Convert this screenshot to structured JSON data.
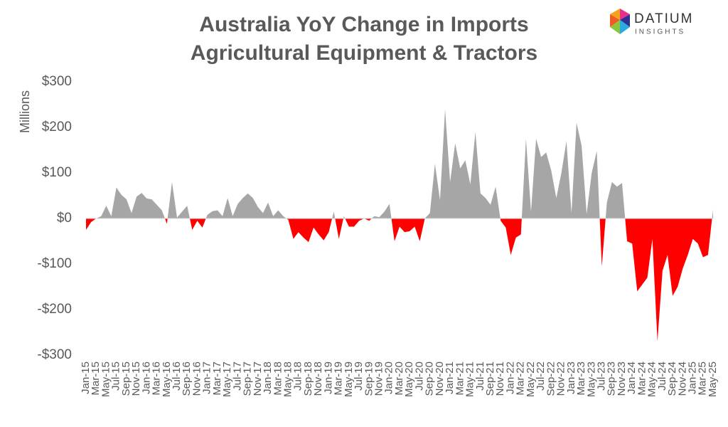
{
  "chart_data": {
    "type": "area",
    "title": "Australia YoY Change in Imports",
    "subtitle": "Agricultural Equipment & Tractors",
    "y_label": "Millions",
    "positive_color": "#a6a6a6",
    "negative_color": "#ff0000",
    "ylim": [
      -300,
      300
    ],
    "yticks": [
      {
        "value": -300,
        "label": "-$300"
      },
      {
        "value": -200,
        "label": "-$200"
      },
      {
        "value": -100,
        "label": "-$100"
      },
      {
        "value": 0,
        "label": "$0"
      },
      {
        "value": 100,
        "label": "$100"
      },
      {
        "value": 200,
        "label": "$200"
      },
      {
        "value": 300,
        "label": "$300"
      }
    ],
    "categories": [
      "Jan-15",
      null,
      "Mar-15",
      null,
      "May-15",
      null,
      "Jul-15",
      null,
      "Sep-15",
      null,
      "Nov-15",
      null,
      "Jan-16",
      null,
      "Mar-16",
      null,
      "May-16",
      null,
      "Jul-16",
      null,
      "Sep-16",
      null,
      "Nov-16",
      null,
      "Jan-17",
      null,
      "Mar-17",
      null,
      "May-17",
      null,
      "Jul-17",
      null,
      "Sep-17",
      null,
      "Nov-17",
      null,
      "Jan-18",
      null,
      "Mar-18",
      null,
      "May-18",
      null,
      "Jul-18",
      null,
      "Sep-18",
      null,
      "Nov-18",
      null,
      "Jan-19",
      null,
      "Mar-19",
      null,
      "May-19",
      null,
      "Jul-19",
      null,
      "Sep-19",
      null,
      "Nov-19",
      null,
      "Jan-20",
      null,
      "Mar-20",
      null,
      "May-20",
      null,
      "Jul-20",
      null,
      "Sep-20",
      null,
      "Nov-20",
      null,
      "Jan-21",
      null,
      "Mar-21",
      null,
      "May-21",
      null,
      "Jul-21",
      null,
      "Sep-21",
      null,
      "Nov-21",
      null,
      "Jan-22",
      null,
      "Mar-22",
      null,
      "May-22",
      null,
      "Jul-22",
      null,
      "Sep-22",
      null,
      "Nov-22",
      null,
      "Jan-23",
      null,
      "Mar-23",
      null,
      "May-23",
      null,
      "Jul-23",
      null,
      "Sep-23",
      null,
      "Nov-23",
      null,
      "Jan-24",
      null,
      "Mar-24",
      null,
      "May-24",
      null,
      "Jul-24",
      null,
      "Sep-24",
      null,
      "Nov-24",
      null,
      "Jan-25",
      null,
      "Mar-25",
      null,
      "May-25"
    ],
    "values": [
      -25,
      -8,
      0,
      5,
      28,
      5,
      68,
      52,
      42,
      12,
      48,
      56,
      44,
      42,
      30,
      18,
      -12,
      80,
      2,
      15,
      28,
      -25,
      -5,
      -20,
      8,
      16,
      18,
      5,
      45,
      5,
      32,
      45,
      55,
      45,
      25,
      12,
      35,
      5,
      18,
      5,
      -3,
      -45,
      -30,
      -42,
      -52,
      -20,
      -35,
      -48,
      -30,
      15,
      -45,
      5,
      -18,
      -18,
      -5,
      0,
      -5,
      5,
      3,
      15,
      32,
      -50,
      -18,
      -30,
      -28,
      -18,
      -50,
      0,
      12,
      120,
      40,
      240,
      80,
      165,
      110,
      128,
      75,
      190,
      55,
      45,
      30,
      70,
      -5,
      -20,
      -80,
      -42,
      -35,
      175,
      15,
      175,
      135,
      145,
      105,
      45,
      100,
      170,
      12,
      210,
      160,
      10,
      100,
      148,
      -105,
      35,
      80,
      70,
      78,
      -50,
      -55,
      -160,
      -145,
      -130,
      -45,
      -270,
      -115,
      -80,
      -170,
      -150,
      -110,
      -80,
      -45,
      -55,
      -85,
      -80,
      20
    ]
  },
  "logo": {
    "name": "DATIUM",
    "tagline": "INSIGHTS"
  }
}
